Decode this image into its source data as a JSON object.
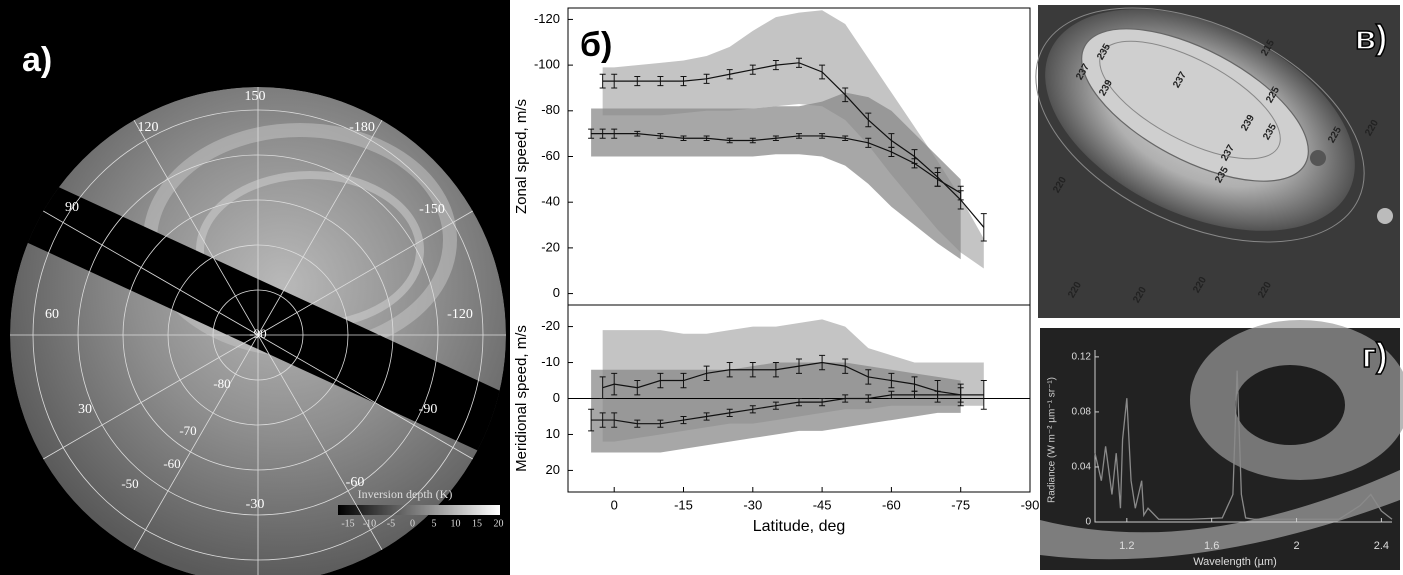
{
  "panels": [
    "а)",
    "б)",
    "в)",
    "г)"
  ],
  "polar_map": {
    "longitude_labels": [
      "150",
      "120",
      "-180",
      "90",
      "-150",
      "60",
      "-120",
      "30",
      "-90",
      "-60",
      "-30"
    ],
    "latitude_labels": [
      "-90",
      "-80",
      "-70",
      "-60",
      "-50"
    ],
    "colorbar_title": "Inversion depth (K)",
    "colorbar_ticks": [
      "-15",
      "-10",
      "-5",
      "0",
      "5",
      "10",
      "15",
      "20"
    ]
  },
  "contour_map": {
    "labels": [
      "235",
      "215",
      "237",
      "237",
      "239",
      "225",
      "235",
      "239",
      "237",
      "235",
      "220",
      "220",
      "220",
      "220",
      "220",
      "220",
      "225"
    ]
  },
  "chart_data": [
    {
      "type": "line",
      "y_label": "Zonal speed, m/s",
      "x_label": "Latitude, deg",
      "xlim": [
        10,
        -90
      ],
      "xticks": [
        0,
        -15,
        -30,
        -45,
        -60,
        -75,
        -90
      ],
      "ylim": [
        5,
        -125
      ],
      "yticks": [
        -120,
        -100,
        -80,
        -60,
        -40,
        -20,
        0
      ],
      "x": [
        5,
        2.5,
        0,
        -5,
        -10,
        -15,
        -20,
        -25,
        -30,
        -35,
        -40,
        -45,
        -50,
        -55,
        -60,
        -65,
        -70,
        -75,
        -80
      ],
      "series": [
        {
          "color": "#111111",
          "band_color": "#c4c4c4",
          "values": [
            null,
            -93,
            -93,
            -93,
            -93,
            -93,
            -94,
            -96,
            -98,
            -100,
            -101,
            -97,
            -87,
            -76,
            -67,
            -60,
            -51,
            -41,
            -29
          ],
          "errors": [
            null,
            3,
            3,
            2,
            2,
            2,
            2,
            2,
            2,
            2,
            2,
            3,
            3,
            3,
            3,
            3,
            4,
            4,
            6
          ],
          "band_high": [
            null,
            -99,
            -99,
            -100,
            -101,
            -102,
            -104,
            -108,
            -115,
            -121,
            -123,
            -124,
            -118,
            -103,
            -88,
            -73,
            -58,
            -42,
            -24
          ],
          "band_low": [
            null,
            -78,
            -78,
            -78,
            -78,
            -79,
            -80,
            -80,
            -81,
            -82,
            -83,
            -82,
            -76,
            -65,
            -52,
            -40,
            -28,
            -18,
            -11
          ]
        },
        {
          "color": "#111111",
          "band_color": "#8a8a8a",
          "values": [
            -70,
            -70,
            -70,
            -70,
            -69,
            -68,
            -68,
            -67,
            -67,
            -68,
            -69,
            -69,
            -68,
            -66,
            -62,
            -57,
            -50,
            -44,
            null
          ],
          "errors": [
            2,
            2,
            2,
            1,
            1,
            1,
            1,
            1,
            1,
            1,
            1,
            1,
            1,
            2,
            2,
            2,
            3,
            3,
            null
          ],
          "band_high": [
            -81,
            -81,
            -81,
            -81,
            -81,
            -81,
            -81,
            -81,
            -81,
            -82,
            -82,
            -84,
            -88,
            -86,
            -80,
            -70,
            -60,
            -50,
            null
          ],
          "band_low": [
            -60,
            -60,
            -60,
            -60,
            -60,
            -60,
            -60,
            -60,
            -60,
            -61,
            -61,
            -60,
            -56,
            -48,
            -38,
            -30,
            -22,
            -15,
            null
          ]
        }
      ]
    },
    {
      "type": "line",
      "y_label": "Meridional speed, m/s",
      "xlim": [
        10,
        -90
      ],
      "ylim": [
        26,
        -26
      ],
      "yticks": [
        -20,
        -10,
        0,
        10,
        20
      ],
      "zero_line": 0,
      "x": [
        5,
        2.5,
        0,
        -5,
        -10,
        -15,
        -20,
        -25,
        -30,
        -35,
        -40,
        -45,
        -50,
        -55,
        -60,
        -65,
        -70,
        -75,
        -80
      ],
      "series": [
        {
          "color": "#111111",
          "band_color": "#c4c4c4",
          "values": [
            null,
            -3,
            -4,
            -3,
            -5,
            -5,
            -7,
            -8,
            -8,
            -8,
            -9,
            -10,
            -9,
            -6,
            -5,
            -4,
            -2,
            -1,
            -1
          ],
          "errors": [
            null,
            3,
            3,
            2,
            2,
            2,
            2,
            2,
            2,
            2,
            2,
            2,
            2,
            2,
            2,
            2,
            3,
            3,
            4
          ],
          "band_high": [
            null,
            -19,
            -19,
            -19,
            -19,
            -18,
            -18,
            -19,
            -20,
            -20,
            -21,
            -22,
            -20,
            -14,
            -12,
            -10,
            -10,
            -10,
            -10
          ],
          "band_low": [
            null,
            12,
            12,
            11,
            10,
            9,
            8,
            7,
            7,
            6,
            5,
            4,
            3,
            3,
            2,
            2,
            2,
            2,
            2
          ]
        },
        {
          "color": "#111111",
          "band_color": "#8a8a8a",
          "values": [
            6,
            6,
            6,
            7,
            7,
            6,
            5,
            4,
            3,
            2,
            1,
            1,
            0,
            0,
            -1,
            -1,
            -1,
            -1,
            null
          ],
          "errors": [
            3,
            2,
            2,
            1,
            1,
            1,
            1,
            1,
            1,
            1,
            1,
            1,
            1,
            1,
            1,
            1,
            1,
            2,
            null
          ],
          "band_high": [
            -8,
            -8,
            -8,
            -8,
            -8,
            -8,
            -8,
            -8,
            -9,
            -10,
            -10,
            -10,
            -10,
            -9,
            -8,
            -7,
            -6,
            -5,
            null
          ],
          "band_low": [
            15,
            15,
            15,
            15,
            15,
            14,
            13,
            12,
            11,
            10,
            9,
            9,
            8,
            7,
            6,
            5,
            4,
            4,
            null
          ]
        }
      ]
    },
    {
      "type": "spectrum",
      "y_label": "Radiance (W m⁻² µm⁻¹ sr⁻¹)",
      "x_label": "Wavelength (µm)",
      "xlim": [
        1.05,
        2.45
      ],
      "xticks": [
        1.2,
        1.6,
        2,
        2.4
      ],
      "ylim": [
        0,
        0.125
      ],
      "yticks": [
        0,
        0.04,
        0.08,
        0.12
      ],
      "color": "#8a8a8a",
      "x": [
        1.05,
        1.08,
        1.1,
        1.13,
        1.15,
        1.17,
        1.18,
        1.2,
        1.22,
        1.24,
        1.27,
        1.28,
        1.3,
        1.35,
        1.5,
        1.65,
        1.7,
        1.72,
        1.74,
        1.76,
        1.8,
        2.0,
        2.2,
        2.3,
        2.35,
        2.4,
        2.45
      ],
      "values": [
        0.05,
        0.03,
        0.055,
        0.02,
        0.05,
        0.01,
        0.06,
        0.09,
        0.03,
        0.01,
        0.03,
        0.005,
        0.01,
        0.002,
        0.002,
        0.003,
        0.02,
        0.11,
        0.02,
        0.003,
        0.002,
        0.002,
        0.002,
        0.012,
        0.02,
        0.008,
        0.002
      ]
    }
  ]
}
